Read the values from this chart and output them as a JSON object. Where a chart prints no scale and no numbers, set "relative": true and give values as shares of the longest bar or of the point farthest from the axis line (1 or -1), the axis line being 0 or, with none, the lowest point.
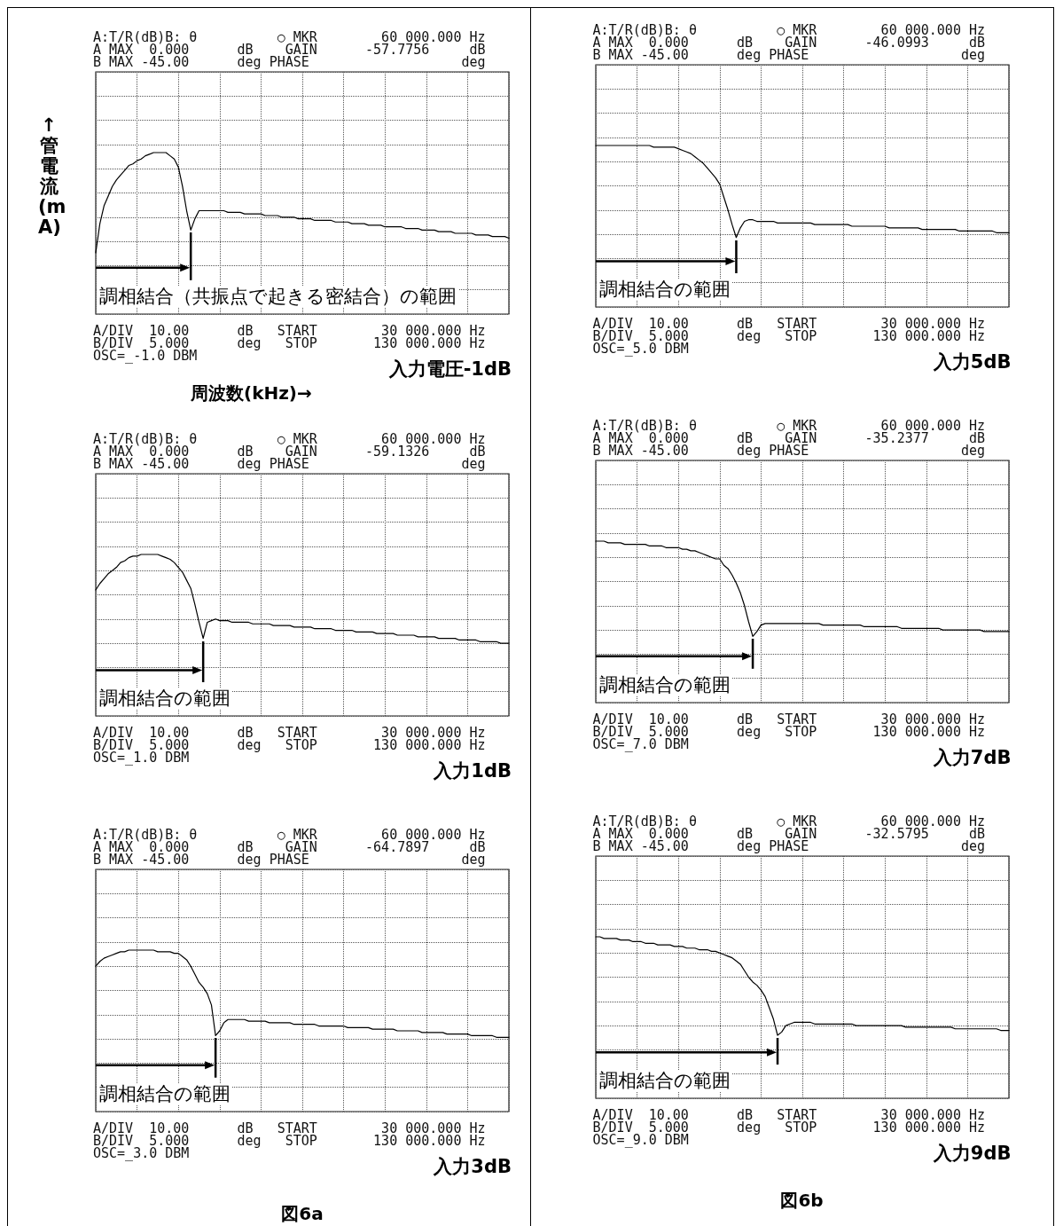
{
  "chart_data": [
    {
      "type": "line",
      "title": "入力電圧-1dB",
      "xlabel": "周波数(kHz)→",
      "ylabel": "↑管電流(mA)",
      "relative": true,
      "grid": true,
      "annotations": [
        "A:T/R(dB)B: θ          ○ MKR        60 000.000 Hz",
        "A MAX  0.000      dB    GAIN      -57.7756     dB",
        "B MAX -45.00      deg PHASE                   deg",
        "調相結合（共振点で起きる密結合）の範囲",
        "A/DIV  10.00      dB   START        30 000.000 Hz",
        "B/DIV  5.000      deg   STOP       130 000.000 Hz",
        "OSC=_-1.0 DBM"
      ],
      "categories": [
        null,
        null,
        null,
        null,
        null,
        null,
        null,
        null,
        null,
        null,
        null,
        null,
        null,
        null,
        null,
        null,
        null,
        null,
        null,
        null,
        null,
        null,
        null,
        null,
        null,
        null,
        null,
        null,
        null,
        null,
        null,
        null,
        null,
        null,
        null,
        null,
        null,
        null,
        null,
        null,
        null,
        null,
        null,
        null,
        null,
        null,
        null,
        null,
        null,
        null,
        null,
        null,
        null,
        null,
        null,
        null,
        null,
        null,
        null,
        null,
        null,
        null,
        null,
        null,
        null,
        null,
        null,
        null,
        null,
        null,
        null,
        null,
        null,
        null,
        null,
        null,
        null,
        null,
        null,
        null,
        null,
        null,
        null,
        null,
        null,
        null,
        null,
        null,
        null,
        null,
        null,
        null,
        null,
        null,
        null,
        null,
        null,
        null,
        null,
        null,
        null
      ],
      "series": [
        {
          "color": "#000000",
          "values": [
            0.38,
            0.56,
            0.67,
            0.73,
            0.79,
            0.83,
            0.86,
            0.89,
            0.92,
            0.93,
            0.95,
            0.96,
            0.98,
            0.99,
            1,
            1,
            1,
            1,
            0.98,
            0.96,
            0.91,
            0.79,
            0.64,
            0.52,
            0.59,
            0.64,
            0.64,
            0.64,
            0.64,
            0.64,
            0.64,
            0.64,
            0.63,
            0.63,
            0.63,
            0.63,
            0.62,
            0.62,
            0.62,
            0.62,
            0.62,
            0.61,
            0.61,
            0.61,
            0.61,
            0.6,
            0.6,
            0.6,
            0.6,
            0.59,
            0.59,
            0.59,
            0.59,
            0.58,
            0.58,
            0.58,
            0.58,
            0.58,
            0.57,
            0.57,
            0.57,
            0.57,
            0.56,
            0.56,
            0.56,
            0.56,
            0.55,
            0.55,
            0.55,
            0.55,
            0.54,
            0.54,
            0.54,
            0.54,
            0.54,
            0.53,
            0.53,
            0.53,
            0.53,
            0.52,
            0.52,
            0.52,
            0.52,
            0.51,
            0.51,
            0.51,
            0.51,
            0.5,
            0.5,
            0.5,
            0.5,
            0.5,
            0.49,
            0.49,
            0.49,
            0.49,
            0.48,
            0.48,
            0.48,
            0.48,
            0.47
          ]
        }
      ]
    },
    {
      "type": "line",
      "title": "入力1dB",
      "relative": true,
      "grid": true,
      "annotations": [
        "A:T/R(dB)B: θ          ○ MKR        60 000.000 Hz",
        "A MAX  0.000      dB    GAIN      -59.1326     dB",
        "B MAX -45.00      deg PHASE                   deg",
        "調相結合の範囲",
        "A/DIV  10.00      dB   START        30 000.000 Hz",
        "B/DIV  5.000      deg   STOP       130 000.000 Hz",
        "OSC=_1.0 DBM"
      ],
      "categories": [
        null,
        null,
        null,
        null,
        null,
        null,
        null,
        null,
        null,
        null,
        null,
        null,
        null,
        null,
        null,
        null,
        null,
        null,
        null,
        null,
        null,
        null,
        null,
        null,
        null,
        null,
        null,
        null,
        null,
        null,
        null,
        null,
        null,
        null,
        null,
        null,
        null,
        null,
        null,
        null,
        null,
        null,
        null,
        null,
        null,
        null,
        null,
        null,
        null,
        null,
        null,
        null,
        null,
        null,
        null,
        null,
        null,
        null,
        null,
        null,
        null,
        null,
        null,
        null,
        null,
        null,
        null,
        null,
        null,
        null,
        null,
        null,
        null,
        null,
        null,
        null,
        null,
        null,
        null,
        null,
        null,
        null,
        null,
        null,
        null,
        null,
        null,
        null,
        null,
        null,
        null,
        null,
        null,
        null,
        null,
        null,
        null,
        null,
        null,
        null,
        null
      ],
      "series": [
        {
          "color": "#000000",
          "values": [
            0.78,
            0.82,
            0.85,
            0.88,
            0.9,
            0.92,
            0.95,
            0.96,
            0.98,
            0.99,
            0.99,
            1,
            1,
            1,
            1,
            1,
            0.99,
            0.98,
            0.97,
            0.95,
            0.92,
            0.89,
            0.84,
            0.79,
            0.69,
            0.58,
            0.48,
            0.58,
            0.59,
            0.6,
            0.59,
            0.59,
            0.59,
            0.58,
            0.58,
            0.58,
            0.58,
            0.58,
            0.57,
            0.57,
            0.57,
            0.57,
            0.57,
            0.56,
            0.56,
            0.56,
            0.56,
            0.56,
            0.55,
            0.55,
            0.55,
            0.55,
            0.55,
            0.54,
            0.54,
            0.54,
            0.54,
            0.54,
            0.53,
            0.53,
            0.53,
            0.53,
            0.53,
            0.52,
            0.52,
            0.52,
            0.52,
            0.52,
            0.51,
            0.51,
            0.51,
            0.51,
            0.51,
            0.5,
            0.5,
            0.5,
            0.5,
            0.5,
            0.49,
            0.49,
            0.49,
            0.49,
            0.49,
            0.48,
            0.48,
            0.48,
            0.48,
            0.48,
            0.47,
            0.47,
            0.47,
            0.47,
            0.47,
            0.46,
            0.46,
            0.46,
            0.46,
            0.46,
            0.45,
            0.45,
            0.45
          ]
        }
      ]
    },
    {
      "type": "line",
      "title": "入力3dB",
      "relative": true,
      "grid": true,
      "annotations": [
        "A:T/R(dB)B: θ          ○ MKR        60 000.000 Hz",
        "A MAX  0.000      dB    GAIN      -64.7897     dB",
        "B MAX -45.00      deg PHASE                   deg",
        "調相結合の範囲",
        "A/DIV  10.00      dB   START        30 000.000 Hz",
        "B/DIV  5.000      deg   STOP       130 000.000 Hz",
        "OSC=_3.0 DBM",
        "図6a"
      ],
      "categories": [
        null,
        null,
        null,
        null,
        null,
        null,
        null,
        null,
        null,
        null,
        null,
        null,
        null,
        null,
        null,
        null,
        null,
        null,
        null,
        null,
        null,
        null,
        null,
        null,
        null,
        null,
        null,
        null,
        null,
        null,
        null,
        null,
        null,
        null,
        null,
        null,
        null,
        null,
        null,
        null,
        null,
        null,
        null,
        null,
        null,
        null,
        null,
        null,
        null,
        null,
        null,
        null,
        null,
        null,
        null,
        null,
        null,
        null,
        null,
        null,
        null,
        null,
        null,
        null,
        null,
        null,
        null,
        null,
        null,
        null,
        null,
        null,
        null,
        null,
        null,
        null,
        null,
        null,
        null,
        null,
        null,
        null,
        null,
        null,
        null,
        null,
        null,
        null,
        null,
        null,
        null,
        null,
        null,
        null,
        null,
        null,
        null,
        null,
        null,
        null,
        null
      ],
      "series": [
        {
          "color": "#000000",
          "values": [
            0.9,
            0.93,
            0.95,
            0.96,
            0.97,
            0.98,
            0.99,
            0.99,
            1,
            1,
            1,
            1,
            1,
            1,
            1,
            0.99,
            0.99,
            0.99,
            0.99,
            0.98,
            0.98,
            0.96,
            0.94,
            0.9,
            0.85,
            0.8,
            0.77,
            0.73,
            0.66,
            0.47,
            0.5,
            0.55,
            0.57,
            0.57,
            0.57,
            0.57,
            0.57,
            0.56,
            0.56,
            0.56,
            0.56,
            0.56,
            0.55,
            0.55,
            0.55,
            0.55,
            0.55,
            0.55,
            0.54,
            0.54,
            0.54,
            0.54,
            0.54,
            0.54,
            0.53,
            0.53,
            0.53,
            0.53,
            0.53,
            0.53,
            0.53,
            0.52,
            0.52,
            0.52,
            0.52,
            0.52,
            0.52,
            0.51,
            0.51,
            0.51,
            0.51,
            0.51,
            0.51,
            0.5,
            0.5,
            0.5,
            0.5,
            0.5,
            0.5,
            0.49,
            0.49,
            0.49,
            0.49,
            0.49,
            0.49,
            0.48,
            0.48,
            0.48,
            0.48,
            0.48,
            0.48,
            0.47,
            0.47,
            0.47,
            0.47,
            0.47,
            0.47,
            0.46,
            0.46,
            0.46,
            0.46
          ]
        }
      ]
    },
    {
      "type": "line",
      "title": "入力5dB",
      "relative": true,
      "grid": true,
      "annotations": [
        "A:T/R(dB)B: θ          ○ MKR        60 000.000 Hz",
        "A MAX  0.000      dB    GAIN      -46.0993     dB",
        "B MAX -45.00      deg PHASE                   deg",
        "調相結合の範囲",
        "A/DIV  10.00      dB   START        30 000.000 Hz",
        "B/DIV  5.000      deg   STOP       130 000.000 Hz",
        "OSC=_5.0 DBM"
      ],
      "categories": [
        null,
        null,
        null,
        null,
        null,
        null,
        null,
        null,
        null,
        null,
        null,
        null,
        null,
        null,
        null,
        null,
        null,
        null,
        null,
        null,
        null,
        null,
        null,
        null,
        null,
        null,
        null,
        null,
        null,
        null,
        null,
        null,
        null,
        null,
        null,
        null,
        null,
        null,
        null,
        null,
        null,
        null,
        null,
        null,
        null,
        null,
        null,
        null,
        null,
        null,
        null,
        null,
        null,
        null,
        null,
        null,
        null,
        null,
        null,
        null,
        null,
        null,
        null,
        null,
        null,
        null,
        null,
        null,
        null,
        null,
        null,
        null,
        null,
        null,
        null,
        null,
        null,
        null,
        null,
        null,
        null,
        null,
        null,
        null,
        null,
        null,
        null,
        null,
        null,
        null,
        null,
        null,
        null,
        null,
        null,
        null,
        null,
        null,
        null,
        null,
        null
      ],
      "series": [
        {
          "color": "#000000",
          "values": [
            1,
            1,
            1,
            1,
            1,
            1,
            1,
            1,
            1,
            1,
            1,
            1,
            1,
            1,
            0.99,
            0.99,
            0.99,
            0.99,
            0.99,
            0.99,
            0.98,
            0.97,
            0.96,
            0.95,
            0.93,
            0.91,
            0.89,
            0.86,
            0.83,
            0.8,
            0.76,
            0.68,
            0.6,
            0.51,
            0.43,
            0.49,
            0.53,
            0.54,
            0.54,
            0.53,
            0.53,
            0.53,
            0.53,
            0.53,
            0.52,
            0.52,
            0.52,
            0.52,
            0.52,
            0.52,
            0.52,
            0.52,
            0.52,
            0.51,
            0.51,
            0.51,
            0.51,
            0.51,
            0.51,
            0.51,
            0.51,
            0.51,
            0.5,
            0.5,
            0.5,
            0.5,
            0.5,
            0.5,
            0.5,
            0.5,
            0.5,
            0.49,
            0.49,
            0.49,
            0.49,
            0.49,
            0.49,
            0.49,
            0.49,
            0.48,
            0.48,
            0.48,
            0.48,
            0.48,
            0.48,
            0.48,
            0.48,
            0.48,
            0.47,
            0.47,
            0.47,
            0.47,
            0.47,
            0.47,
            0.47,
            0.47,
            0.47,
            0.46,
            0.46,
            0.46,
            0.46
          ]
        }
      ]
    },
    {
      "type": "line",
      "title": "入力7dB",
      "relative": true,
      "grid": true,
      "annotations": [
        "A:T/R(dB)B: θ          ○ MKR        60 000.000 Hz",
        "A MAX  0.000      dB    GAIN      -35.2377     dB",
        "B MAX -45.00      deg PHASE                   deg",
        "調相結合の範囲",
        "A/DIV  10.00      dB   START        30 000.000 Hz",
        "B/DIV  5.000      deg   STOP       130 000.000 Hz",
        "OSC=_7.0 DBM"
      ],
      "categories": [
        null,
        null,
        null,
        null,
        null,
        null,
        null,
        null,
        null,
        null,
        null,
        null,
        null,
        null,
        null,
        null,
        null,
        null,
        null,
        null,
        null,
        null,
        null,
        null,
        null,
        null,
        null,
        null,
        null,
        null,
        null,
        null,
        null,
        null,
        null,
        null,
        null,
        null,
        null,
        null,
        null,
        null,
        null,
        null,
        null,
        null,
        null,
        null,
        null,
        null,
        null,
        null,
        null,
        null,
        null,
        null,
        null,
        null,
        null,
        null,
        null,
        null,
        null,
        null,
        null,
        null,
        null,
        null,
        null,
        null,
        null,
        null,
        null,
        null,
        null,
        null,
        null,
        null,
        null,
        null,
        null,
        null,
        null,
        null,
        null,
        null,
        null,
        null,
        null,
        null,
        null,
        null,
        null,
        null,
        null,
        null,
        null,
        null,
        null,
        null,
        null
      ],
      "series": [
        {
          "color": "#000000",
          "values": [
            1,
            1,
            1,
            0.99,
            0.99,
            0.99,
            0.99,
            0.98,
            0.98,
            0.98,
            0.98,
            0.98,
            0.98,
            0.97,
            0.97,
            0.97,
            0.97,
            0.96,
            0.96,
            0.96,
            0.96,
            0.95,
            0.95,
            0.94,
            0.94,
            0.93,
            0.92,
            0.91,
            0.9,
            0.89,
            0.89,
            0.85,
            0.83,
            0.79,
            0.74,
            0.68,
            0.6,
            0.5,
            0.41,
            0.44,
            0.48,
            0.49,
            0.49,
            0.49,
            0.49,
            0.49,
            0.49,
            0.49,
            0.49,
            0.49,
            0.49,
            0.49,
            0.49,
            0.49,
            0.49,
            0.48,
            0.48,
            0.48,
            0.48,
            0.48,
            0.48,
            0.48,
            0.48,
            0.48,
            0.48,
            0.47,
            0.47,
            0.47,
            0.47,
            0.47,
            0.47,
            0.47,
            0.47,
            0.47,
            0.46,
            0.46,
            0.46,
            0.46,
            0.46,
            0.46,
            0.46,
            0.46,
            0.46,
            0.46,
            0.45,
            0.45,
            0.45,
            0.45,
            0.45,
            0.45,
            0.45,
            0.45,
            0.45,
            0.45,
            0.44,
            0.44,
            0.44,
            0.44,
            0.44,
            0.44,
            0.44
          ]
        }
      ]
    },
    {
      "type": "line",
      "title": "入力9dB",
      "relative": true,
      "grid": true,
      "annotations": [
        "A:T/R(dB)B: θ          ○ MKR        60 000.000 Hz",
        "A MAX  0.000      dB    GAIN      -32.5795     dB",
        "B MAX -45.00      deg PHASE                   deg",
        "調相結合の範囲",
        "A/DIV  10.00      dB   START        30 000.000 Hz",
        "B/DIV  5.000      deg   STOP       130 000.000 Hz",
        "OSC=_9.0 DBM",
        "図6b"
      ],
      "categories": [
        null,
        null,
        null,
        null,
        null,
        null,
        null,
        null,
        null,
        null,
        null,
        null,
        null,
        null,
        null,
        null,
        null,
        null,
        null,
        null,
        null,
        null,
        null,
        null,
        null,
        null,
        null,
        null,
        null,
        null,
        null,
        null,
        null,
        null,
        null,
        null,
        null,
        null,
        null,
        null,
        null,
        null,
        null,
        null,
        null,
        null,
        null,
        null,
        null,
        null,
        null,
        null,
        null,
        null,
        null,
        null,
        null,
        null,
        null,
        null,
        null,
        null,
        null,
        null,
        null,
        null,
        null,
        null,
        null,
        null,
        null,
        null,
        null,
        null,
        null,
        null,
        null,
        null,
        null,
        null,
        null,
        null,
        null,
        null,
        null,
        null,
        null,
        null,
        null,
        null,
        null,
        null,
        null,
        null,
        null,
        null,
        null,
        null,
        null,
        null,
        null
      ],
      "series": [
        {
          "color": "#000000",
          "values": [
            1,
            1,
            0.99,
            0.99,
            0.99,
            0.99,
            0.98,
            0.98,
            0.98,
            0.97,
            0.97,
            0.97,
            0.96,
            0.96,
            0.96,
            0.95,
            0.95,
            0.95,
            0.95,
            0.94,
            0.94,
            0.94,
            0.93,
            0.93,
            0.93,
            0.92,
            0.92,
            0.92,
            0.91,
            0.91,
            0.9,
            0.89,
            0.88,
            0.87,
            0.85,
            0.83,
            0.79,
            0.75,
            0.72,
            0.7,
            0.67,
            0.63,
            0.56,
            0.49,
            0.39,
            0.41,
            0.45,
            0.46,
            0.47,
            0.47,
            0.47,
            0.47,
            0.47,
            0.46,
            0.46,
            0.46,
            0.46,
            0.46,
            0.46,
            0.46,
            0.46,
            0.46,
            0.46,
            0.45,
            0.45,
            0.45,
            0.45,
            0.45,
            0.45,
            0.45,
            0.45,
            0.45,
            0.45,
            0.45,
            0.45,
            0.44,
            0.44,
            0.44,
            0.44,
            0.44,
            0.44,
            0.44,
            0.44,
            0.44,
            0.44,
            0.44,
            0.44,
            0.43,
            0.43,
            0.43,
            0.43,
            0.43,
            0.43,
            0.43,
            0.43,
            0.43,
            0.43,
            0.43,
            0.42,
            0.42,
            0.42
          ]
        }
      ]
    }
  ]
}
